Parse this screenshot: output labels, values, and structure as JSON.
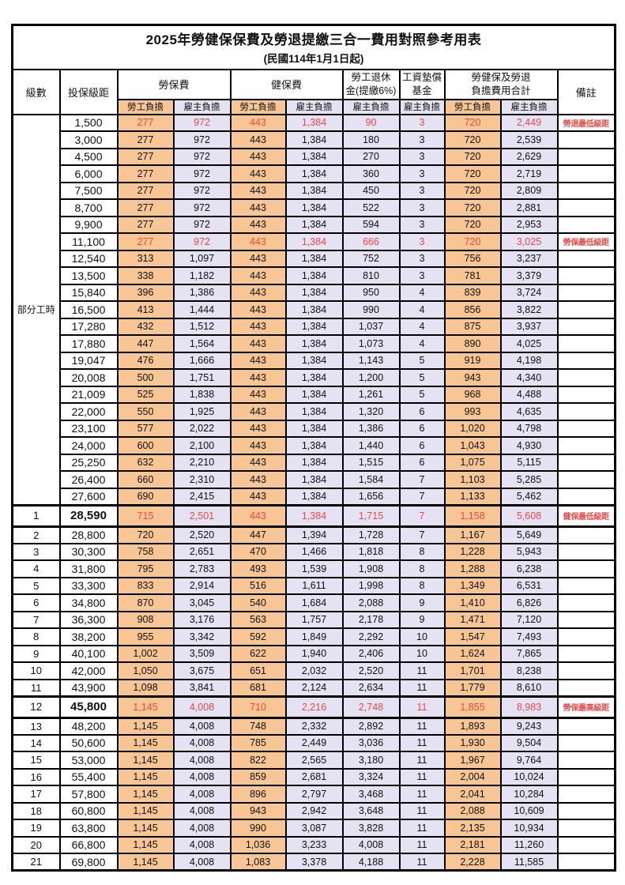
{
  "title": "2025年勞健保保費及勞退提繳三合一費用對照參考用表",
  "subtitle": "(民國114年1月1日起)",
  "header": {
    "level": "級數",
    "bracket": "投保級距",
    "labor_fee": "勞保費",
    "health_fee": "健保費",
    "pension_line1": "勞工退休",
    "pension_line2": "金(提繳6%)",
    "wage_fund_line1": "工資墊償",
    "wage_fund_line2": "基金",
    "total_line1": "勞健保及勞退",
    "total_line2": "負擔費用合計",
    "remark": "備註",
    "employee_share": "勞工負擔",
    "employer_share": "雇主負擔"
  },
  "part_time_label": "部分工時",
  "colors": {
    "employee_fill": "#F8C694",
    "employer_fill": "#E4E2F3",
    "highlight_red": "#F24747"
  },
  "rows": [
    {
      "level": "",
      "bracket": "1,500",
      "cells": [
        "277",
        "972",
        "443",
        "1,384",
        "90",
        "3",
        "720",
        "2,449"
      ],
      "remark": "勞退最低級距",
      "red": true,
      "tall": false
    },
    {
      "level": "",
      "bracket": "3,000",
      "cells": [
        "277",
        "972",
        "443",
        "1,384",
        "180",
        "3",
        "720",
        "2,539"
      ],
      "remark": "",
      "red": false,
      "tall": false
    },
    {
      "level": "",
      "bracket": "4,500",
      "cells": [
        "277",
        "972",
        "443",
        "1,384",
        "270",
        "3",
        "720",
        "2,629"
      ],
      "remark": "",
      "red": false,
      "tall": false
    },
    {
      "level": "",
      "bracket": "6,000",
      "cells": [
        "277",
        "972",
        "443",
        "1,384",
        "360",
        "3",
        "720",
        "2,719"
      ],
      "remark": "",
      "red": false,
      "tall": false
    },
    {
      "level": "",
      "bracket": "7,500",
      "cells": [
        "277",
        "972",
        "443",
        "1,384",
        "450",
        "3",
        "720",
        "2,809"
      ],
      "remark": "",
      "red": false,
      "tall": false
    },
    {
      "level": "",
      "bracket": "8,700",
      "cells": [
        "277",
        "972",
        "443",
        "1,384",
        "522",
        "3",
        "720",
        "2,881"
      ],
      "remark": "",
      "red": false,
      "tall": false
    },
    {
      "level": "",
      "bracket": "9,900",
      "cells": [
        "277",
        "972",
        "443",
        "1,384",
        "594",
        "3",
        "720",
        "2,953"
      ],
      "remark": "",
      "red": false,
      "tall": false
    },
    {
      "level": "",
      "bracket": "11,100",
      "cells": [
        "277",
        "972",
        "443",
        "1,384",
        "666",
        "3",
        "720",
        "3,025"
      ],
      "remark": "勞保最低級距",
      "red": true,
      "tall": false
    },
    {
      "level": "",
      "bracket": "12,540",
      "cells": [
        "313",
        "1,097",
        "443",
        "1,384",
        "752",
        "3",
        "756",
        "3,237"
      ],
      "remark": "",
      "red": false,
      "tall": false
    },
    {
      "level": "",
      "bracket": "13,500",
      "cells": [
        "338",
        "1,182",
        "443",
        "1,384",
        "810",
        "3",
        "781",
        "3,379"
      ],
      "remark": "",
      "red": false,
      "tall": false
    },
    {
      "level": "",
      "bracket": "15,840",
      "cells": [
        "396",
        "1,386",
        "443",
        "1,384",
        "950",
        "4",
        "839",
        "3,724"
      ],
      "remark": "",
      "red": false,
      "tall": false
    },
    {
      "level": "",
      "bracket": "16,500",
      "cells": [
        "413",
        "1,444",
        "443",
        "1,384",
        "990",
        "4",
        "856",
        "3,822"
      ],
      "remark": "",
      "red": false,
      "tall": false
    },
    {
      "level": "",
      "bracket": "17,280",
      "cells": [
        "432",
        "1,512",
        "443",
        "1,384",
        "1,037",
        "4",
        "875",
        "3,937"
      ],
      "remark": "",
      "red": false,
      "tall": false
    },
    {
      "level": "",
      "bracket": "17,880",
      "cells": [
        "447",
        "1,564",
        "443",
        "1,384",
        "1,073",
        "4",
        "890",
        "4,025"
      ],
      "remark": "",
      "red": false,
      "tall": false
    },
    {
      "level": "",
      "bracket": "19,047",
      "cells": [
        "476",
        "1,666",
        "443",
        "1,384",
        "1,143",
        "5",
        "919",
        "4,198"
      ],
      "remark": "",
      "red": false,
      "tall": false
    },
    {
      "level": "",
      "bracket": "20,008",
      "cells": [
        "500",
        "1,751",
        "443",
        "1,384",
        "1,200",
        "5",
        "943",
        "4,340"
      ],
      "remark": "",
      "red": false,
      "tall": false
    },
    {
      "level": "",
      "bracket": "21,009",
      "cells": [
        "525",
        "1,838",
        "443",
        "1,384",
        "1,261",
        "5",
        "968",
        "4,488"
      ],
      "remark": "",
      "red": false,
      "tall": false
    },
    {
      "level": "",
      "bracket": "22,000",
      "cells": [
        "550",
        "1,925",
        "443",
        "1,384",
        "1,320",
        "6",
        "993",
        "4,635"
      ],
      "remark": "",
      "red": false,
      "tall": false
    },
    {
      "level": "",
      "bracket": "23,100",
      "cells": [
        "577",
        "2,022",
        "443",
        "1,384",
        "1,386",
        "6",
        "1,020",
        "4,798"
      ],
      "remark": "",
      "red": false,
      "tall": false
    },
    {
      "level": "",
      "bracket": "24,000",
      "cells": [
        "600",
        "2,100",
        "443",
        "1,384",
        "1,440",
        "6",
        "1,043",
        "4,930"
      ],
      "remark": "",
      "red": false,
      "tall": false
    },
    {
      "level": "",
      "bracket": "25,250",
      "cells": [
        "632",
        "2,210",
        "443",
        "1,384",
        "1,515",
        "6",
        "1,075",
        "5,115"
      ],
      "remark": "",
      "red": false,
      "tall": false
    },
    {
      "level": "",
      "bracket": "26,400",
      "cells": [
        "660",
        "2,310",
        "443",
        "1,384",
        "1,584",
        "7",
        "1,103",
        "5,285"
      ],
      "remark": "",
      "red": false,
      "tall": false
    },
    {
      "level": "",
      "bracket": "27,600",
      "cells": [
        "690",
        "2,415",
        "443",
        "1,384",
        "1,656",
        "7",
        "1,133",
        "5,462"
      ],
      "remark": "",
      "red": false,
      "tall": false
    },
    {
      "level": "1",
      "bracket": "28,590",
      "cells": [
        "715",
        "2,501",
        "443",
        "1,384",
        "1,715",
        "7",
        "1,158",
        "5,608"
      ],
      "remark": "健保最低級距",
      "red": true,
      "tall": true
    },
    {
      "level": "2",
      "bracket": "28,800",
      "cells": [
        "720",
        "2,520",
        "447",
        "1,394",
        "1,728",
        "7",
        "1,167",
        "5,649"
      ],
      "remark": "",
      "red": false,
      "tall": false
    },
    {
      "level": "3",
      "bracket": "30,300",
      "cells": [
        "758",
        "2,651",
        "470",
        "1,466",
        "1,818",
        "8",
        "1,228",
        "5,943"
      ],
      "remark": "",
      "red": false,
      "tall": false
    },
    {
      "level": "4",
      "bracket": "31,800",
      "cells": [
        "795",
        "2,783",
        "493",
        "1,539",
        "1,908",
        "8",
        "1,288",
        "6,238"
      ],
      "remark": "",
      "red": false,
      "tall": false
    },
    {
      "level": "5",
      "bracket": "33,300",
      "cells": [
        "833",
        "2,914",
        "516",
        "1,611",
        "1,998",
        "8",
        "1,349",
        "6,531"
      ],
      "remark": "",
      "red": false,
      "tall": false
    },
    {
      "level": "6",
      "bracket": "34,800",
      "cells": [
        "870",
        "3,045",
        "540",
        "1,684",
        "2,088",
        "9",
        "1,410",
        "6,826"
      ],
      "remark": "",
      "red": false,
      "tall": false
    },
    {
      "level": "7",
      "bracket": "36,300",
      "cells": [
        "908",
        "3,176",
        "563",
        "1,757",
        "2,178",
        "9",
        "1,471",
        "7,120"
      ],
      "remark": "",
      "red": false,
      "tall": false
    },
    {
      "level": "8",
      "bracket": "38,200",
      "cells": [
        "955",
        "3,342",
        "592",
        "1,849",
        "2,292",
        "10",
        "1,547",
        "7,493"
      ],
      "remark": "",
      "red": false,
      "tall": false
    },
    {
      "level": "9",
      "bracket": "40,100",
      "cells": [
        "1,002",
        "3,509",
        "622",
        "1,940",
        "2,406",
        "10",
        "1,624",
        "7,865"
      ],
      "remark": "",
      "red": false,
      "tall": false
    },
    {
      "level": "10",
      "bracket": "42,000",
      "cells": [
        "1,050",
        "3,675",
        "651",
        "2,032",
        "2,520",
        "11",
        "1,701",
        "8,238"
      ],
      "remark": "",
      "red": false,
      "tall": false
    },
    {
      "level": "11",
      "bracket": "43,900",
      "cells": [
        "1,098",
        "3,841",
        "681",
        "2,124",
        "2,634",
        "11",
        "1,779",
        "8,610"
      ],
      "remark": "",
      "red": false,
      "tall": false
    },
    {
      "level": "12",
      "bracket": "45,800",
      "cells": [
        "1,145",
        "4,008",
        "710",
        "2,216",
        "2,748",
        "11",
        "1,855",
        "8,983"
      ],
      "remark": "勞保最高級距",
      "red": true,
      "tall": true
    },
    {
      "level": "13",
      "bracket": "48,200",
      "cells": [
        "1,145",
        "4,008",
        "748",
        "2,332",
        "2,892",
        "11",
        "1,893",
        "9,243"
      ],
      "remark": "",
      "red": false,
      "tall": false
    },
    {
      "level": "14",
      "bracket": "50,600",
      "cells": [
        "1,145",
        "4,008",
        "785",
        "2,449",
        "3,036",
        "11",
        "1,930",
        "9,504"
      ],
      "remark": "",
      "red": false,
      "tall": false
    },
    {
      "level": "15",
      "bracket": "53,000",
      "cells": [
        "1,145",
        "4,008",
        "822",
        "2,565",
        "3,180",
        "11",
        "1,967",
        "9,764"
      ],
      "remark": "",
      "red": false,
      "tall": false
    },
    {
      "level": "16",
      "bracket": "55,400",
      "cells": [
        "1,145",
        "4,008",
        "859",
        "2,681",
        "3,324",
        "11",
        "2,004",
        "10,024"
      ],
      "remark": "",
      "red": false,
      "tall": false
    },
    {
      "level": "17",
      "bracket": "57,800",
      "cells": [
        "1,145",
        "4,008",
        "896",
        "2,797",
        "3,468",
        "11",
        "2,041",
        "10,284"
      ],
      "remark": "",
      "red": false,
      "tall": false
    },
    {
      "level": "18",
      "bracket": "60,800",
      "cells": [
        "1,145",
        "4,008",
        "943",
        "2,942",
        "3,648",
        "11",
        "2,088",
        "10,609"
      ],
      "remark": "",
      "red": false,
      "tall": false
    },
    {
      "level": "19",
      "bracket": "63,800",
      "cells": [
        "1,145",
        "4,008",
        "990",
        "3,087",
        "3,828",
        "11",
        "2,135",
        "10,934"
      ],
      "remark": "",
      "red": false,
      "tall": false
    },
    {
      "level": "20",
      "bracket": "66,800",
      "cells": [
        "1,145",
        "4,008",
        "1,036",
        "3,233",
        "4,008",
        "11",
        "2,181",
        "11,260"
      ],
      "remark": "",
      "red": false,
      "tall": false
    },
    {
      "level": "21",
      "bracket": "69,800",
      "cells": [
        "1,145",
        "4,008",
        "1,083",
        "3,378",
        "4,188",
        "11",
        "2,228",
        "11,585"
      ],
      "remark": "",
      "red": false,
      "tall": false
    }
  ]
}
